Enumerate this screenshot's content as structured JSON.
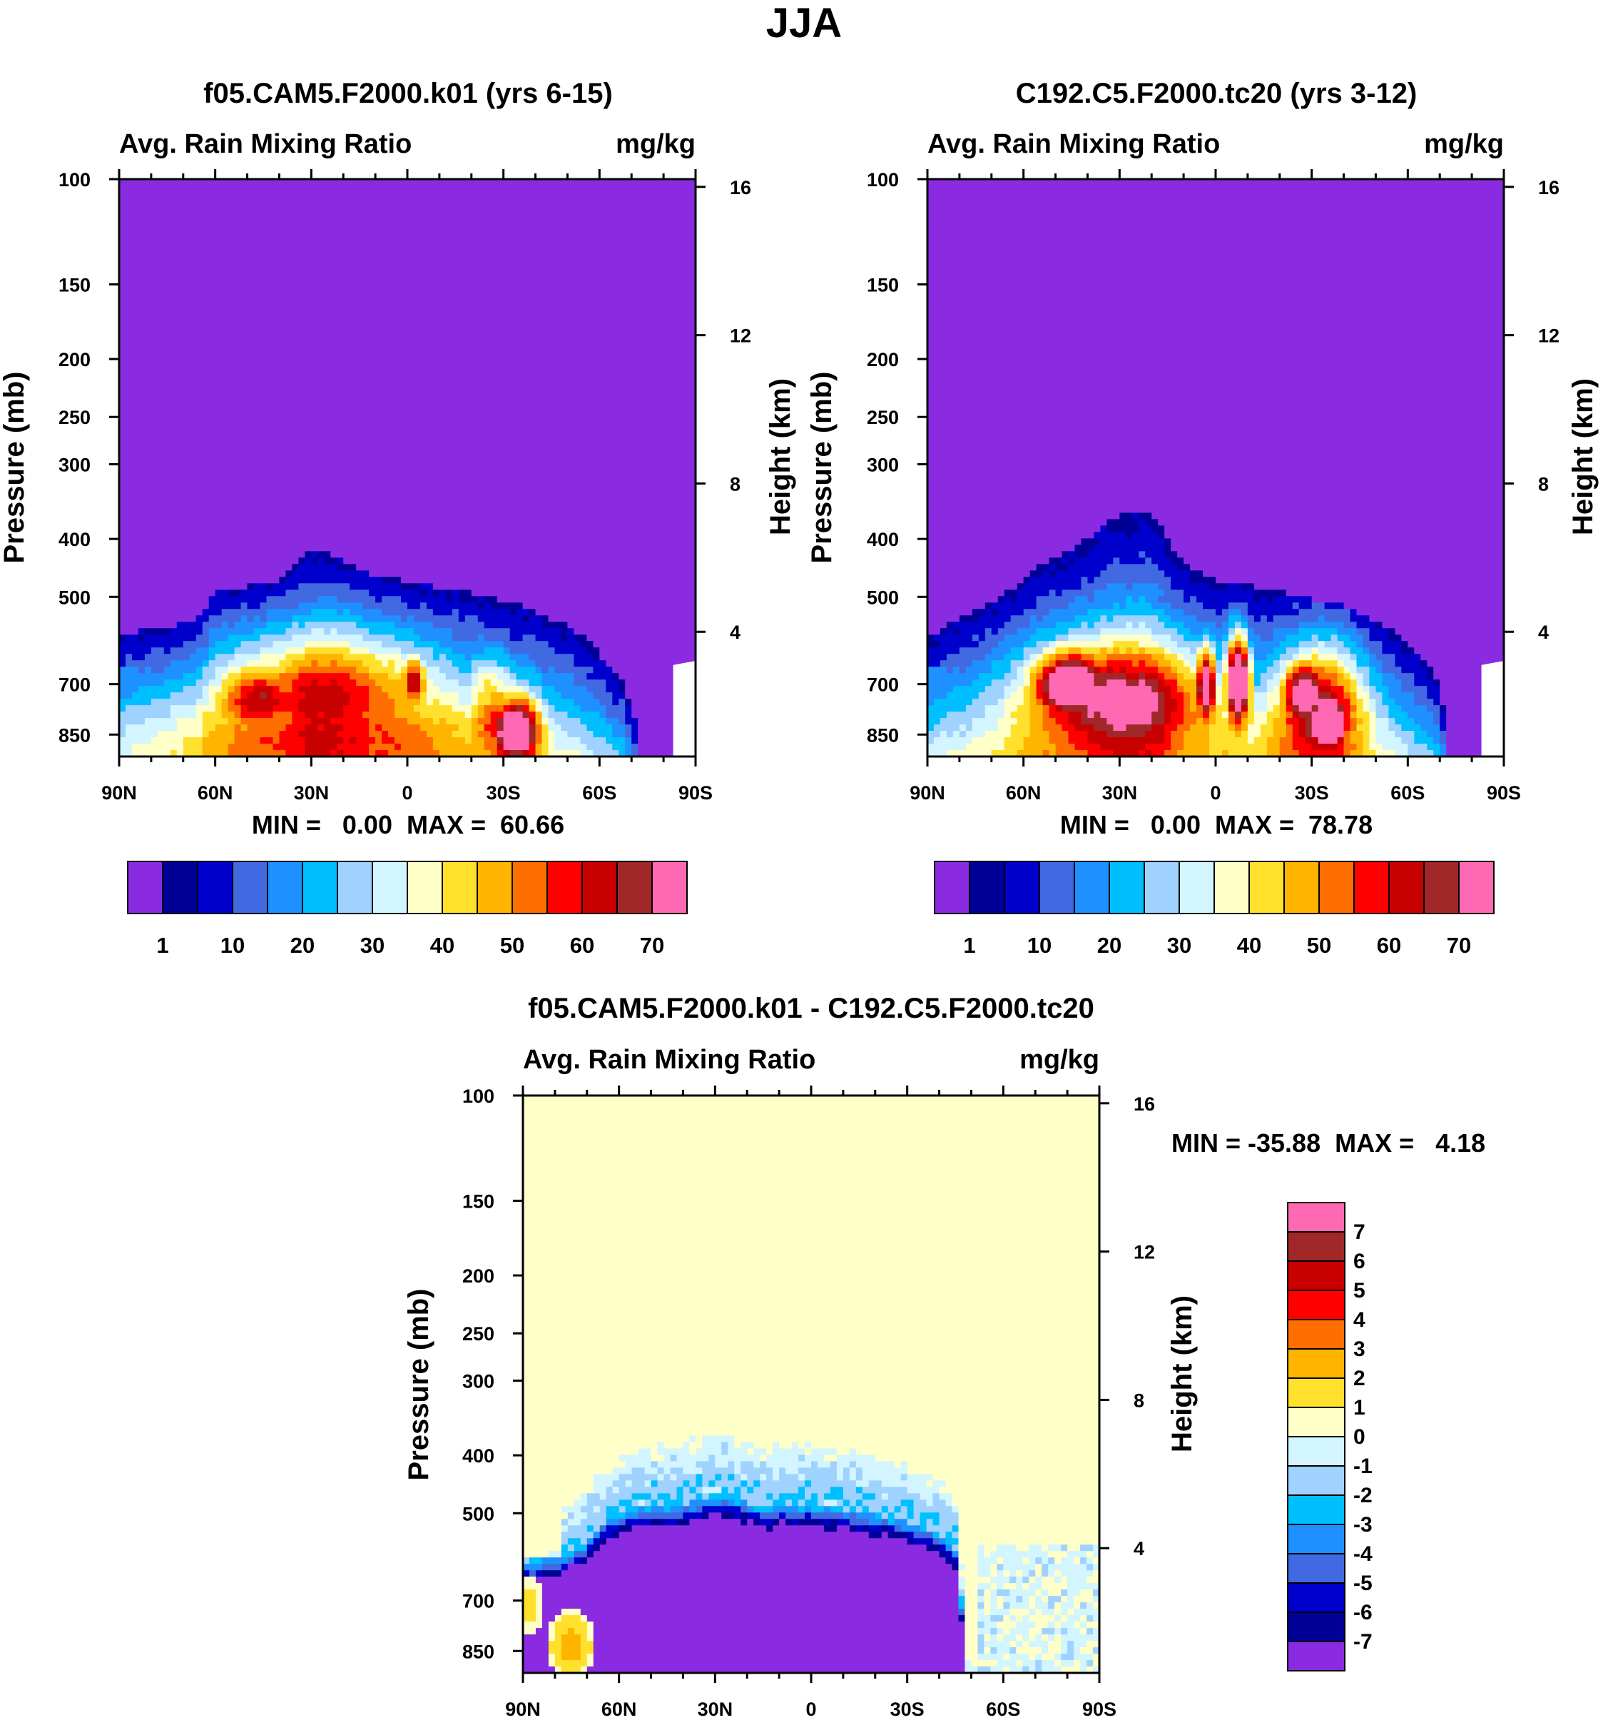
{
  "figure_title": "JJA",
  "chart_data": [
    {
      "id": "p1",
      "type": "heatmap",
      "title": "f05.CAM5.F2000.k01 (yrs 6-15)",
      "left_label": "Avg. Rain Mixing Ratio",
      "units": "mg/kg",
      "ylabel": "Pressure (mb)",
      "ylabel_right": "Height (km)",
      "y_ticks": [
        100,
        150,
        200,
        250,
        300,
        400,
        500,
        700,
        850
      ],
      "ylim": [
        100,
        925
      ],
      "height_ticks": [
        16,
        12,
        8,
        4
      ],
      "x_ticks": [
        "90N",
        "60N",
        "30N",
        "0",
        "30S",
        "60S",
        "90S"
      ],
      "xlim": [
        90,
        -90
      ],
      "stats": "MIN =   0.00  MAX =  60.66",
      "min": 0.0,
      "max": 60.66,
      "colorbar_labels": [
        "1",
        "10",
        "20",
        "30",
        "40",
        "50",
        "60",
        "70"
      ],
      "top_profile_mb": [
        [
          90,
          580
        ],
        [
          84,
          570
        ],
        [
          78,
          562
        ],
        [
          72,
          558
        ],
        [
          66,
          550
        ],
        [
          60,
          488
        ],
        [
          50,
          480
        ],
        [
          40,
          470
        ],
        [
          30,
          418
        ],
        [
          22,
          428
        ],
        [
          15,
          452
        ],
        [
          10,
          465
        ],
        [
          0,
          470
        ],
        [
          -10,
          482
        ],
        [
          -20,
          492
        ],
        [
          -30,
          508
        ],
        [
          -38,
          520
        ],
        [
          -45,
          545
        ],
        [
          -50,
          560
        ],
        [
          -56,
          590
        ],
        [
          -62,
          640
        ],
        [
          -67,
          690
        ],
        [
          -71,
          790
        ],
        [
          -73,
          925
        ]
      ],
      "blobs": [
        {
          "lat": 25,
          "p": 710,
          "rlat": 34,
          "rp": 150,
          "peak": 33
        },
        {
          "lat": 46,
          "p": 730,
          "rlat": 14,
          "rp": 100,
          "peak": 38
        },
        {
          "lat": 25,
          "p": 800,
          "rlat": 48,
          "rp": 160,
          "peak": 22
        },
        {
          "lat": -2,
          "p": 690,
          "rlat": 4,
          "rp": 70,
          "peak": 42
        },
        {
          "lat": -30,
          "p": 800,
          "rlat": 10,
          "rp": 120,
          "peak": 30
        },
        {
          "lat": -34,
          "p": 830,
          "rlat": 7,
          "rp": 95,
          "peak": 62
        },
        {
          "lat": -26,
          "p": 720,
          "rlat": 7,
          "rp": 100,
          "peak": 22
        }
      ]
    },
    {
      "id": "p2",
      "type": "heatmap",
      "title": "C192.C5.F2000.tc20 (yrs 3-12)",
      "left_label": "Avg. Rain Mixing Ratio",
      "units": "mg/kg",
      "ylabel": "Pressure (mb)",
      "ylabel_right": "Height (km)",
      "y_ticks": [
        100,
        150,
        200,
        250,
        300,
        400,
        500,
        700,
        850
      ],
      "ylim": [
        100,
        925
      ],
      "height_ticks": [
        16,
        12,
        8,
        4
      ],
      "x_ticks": [
        "90N",
        "60N",
        "30N",
        "0",
        "30S",
        "60S",
        "90S"
      ],
      "xlim": [
        90,
        -90
      ],
      "stats": "MIN =   0.00  MAX =  78.78",
      "min": 0.0,
      "max": 78.78,
      "colorbar_labels": [
        "1",
        "10",
        "20",
        "30",
        "40",
        "50",
        "60",
        "70"
      ],
      "top_profile_mb": [
        [
          90,
          590
        ],
        [
          84,
          555
        ],
        [
          78,
          540
        ],
        [
          72,
          520
        ],
        [
          65,
          492
        ],
        [
          58,
          452
        ],
        [
          50,
          432
        ],
        [
          40,
          400
        ],
        [
          34,
          372
        ],
        [
          28,
          362
        ],
        [
          20,
          358
        ],
        [
          15,
          400
        ],
        [
          8,
          450
        ],
        [
          0,
          468
        ],
        [
          -10,
          478
        ],
        [
          -20,
          490
        ],
        [
          -30,
          505
        ],
        [
          -40,
          515
        ],
        [
          -48,
          540
        ],
        [
          -55,
          570
        ],
        [
          -62,
          610
        ],
        [
          -68,
          660
        ],
        [
          -71,
          760
        ],
        [
          -73,
          925
        ]
      ],
      "blobs": [
        {
          "lat": 45,
          "p": 700,
          "rlat": 12,
          "rp": 90,
          "peak": 62
        },
        {
          "lat": 30,
          "p": 730,
          "rlat": 28,
          "rp": 140,
          "peak": 40
        },
        {
          "lat": -7,
          "p": 690,
          "rlat": 3.5,
          "rp": 110,
          "peak": 76
        },
        {
          "lat": 3,
          "p": 700,
          "rlat": 3,
          "rp": 95,
          "peak": 60
        },
        {
          "lat": -28,
          "p": 720,
          "rlat": 7,
          "rp": 90,
          "peak": 62
        },
        {
          "lat": -35,
          "p": 800,
          "rlat": 6,
          "rp": 90,
          "peak": 75
        },
        {
          "lat": -33,
          "p": 760,
          "rlat": 13,
          "rp": 170,
          "peak": 45
        }
      ]
    },
    {
      "id": "p3",
      "type": "heatmap",
      "title": "f05.CAM5.F2000.k01 - C192.C5.F2000.tc20",
      "left_label": "Avg. Rain Mixing Ratio",
      "units": "mg/kg",
      "ylabel": "Pressure (mb)",
      "ylabel_right": "Height (km)",
      "y_ticks": [
        100,
        150,
        200,
        250,
        300,
        400,
        500,
        700,
        850
      ],
      "ylim": [
        100,
        925
      ],
      "height_ticks": [
        16,
        12,
        8,
        4
      ],
      "x_ticks": [
        "90N",
        "60N",
        "30N",
        "0",
        "30S",
        "60S",
        "90S"
      ],
      "xlim": [
        90,
        -90
      ],
      "stats": "MIN = -35.88  MAX =   4.18",
      "min": -35.88,
      "max": 4.18,
      "colorbar_labels": [
        "7",
        "6",
        "5",
        "4",
        "3",
        "2",
        "1",
        "0",
        "-1",
        "-2",
        "-3",
        "-4",
        "-5",
        "-6",
        "-7"
      ],
      "deficit_profile_mb": [
        [
          90,
          600
        ],
        [
          84,
          590
        ],
        [
          78,
          580
        ],
        [
          72,
          560
        ],
        [
          64,
          500
        ],
        [
          56,
          480
        ],
        [
          40,
          470
        ],
        [
          32,
          455
        ],
        [
          22,
          460
        ],
        [
          15,
          480
        ],
        [
          8,
          470
        ],
        [
          0,
          475
        ],
        [
          -10,
          480
        ],
        [
          -20,
          490
        ],
        [
          -30,
          505
        ],
        [
          -40,
          530
        ],
        [
          -45,
          560
        ],
        [
          -47,
          700
        ],
        [
          -48,
          925
        ]
      ],
      "wet_blobs": [
        {
          "lat": 88,
          "p": 720,
          "rlat": 4,
          "rp": 80,
          "peak": 1.5
        },
        {
          "lat": 75,
          "p": 835,
          "rlat": 6,
          "rp": 90,
          "peak": 2.8
        },
        {
          "lat": -55,
          "p": 840,
          "rlat": 6,
          "rp": 50,
          "peak": 1.6
        }
      ]
    }
  ],
  "palette_abs": [
    "#8a2be2",
    "#000096",
    "#0000cd",
    "#4169e1",
    "#1e90ff",
    "#00bfff",
    "#a0d2ff",
    "#d2f5ff",
    "#ffffc8",
    "#ffe12d",
    "#ffb400",
    "#ff6e00",
    "#ff0000",
    "#c80000",
    "#a02828",
    "#ff69b4"
  ],
  "palette_diff": [
    "#8a2be2",
    "#000096",
    "#0000cd",
    "#4169e1",
    "#1e90ff",
    "#00bfff",
    "#a0d2ff",
    "#d2f5ff",
    "#ffffc8",
    "#ffe12d",
    "#ffb400",
    "#ff6e00",
    "#ff0000",
    "#c80000",
    "#a02828",
    "#ff69b4"
  ]
}
